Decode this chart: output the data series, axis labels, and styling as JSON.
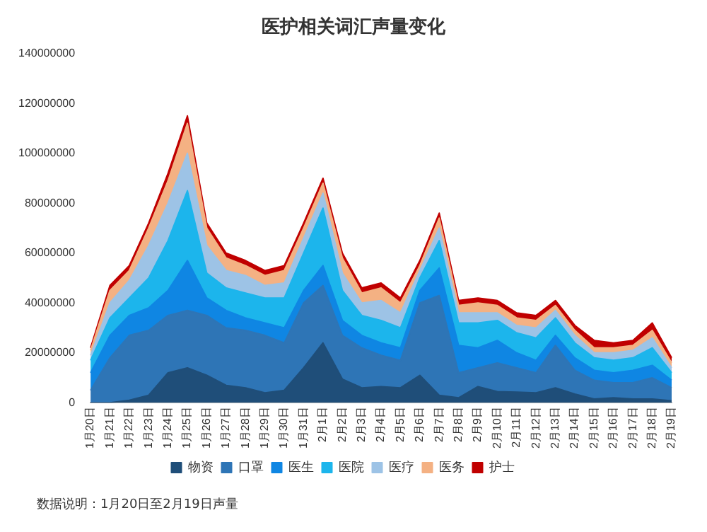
{
  "chart_data": {
    "type": "area",
    "title": "医护相关词汇声量变化",
    "stacked": true,
    "legend": "bottom",
    "grid": false,
    "categories": [
      "1月20日",
      "1月21日",
      "1月22日",
      "1月23日",
      "1月24日",
      "1月25日",
      "1月26日",
      "1月27日",
      "1月28日",
      "1月29日",
      "1月30日",
      "1月31日",
      "2月1日",
      "2月2日",
      "2月3日",
      "2月4日",
      "2月5日",
      "2月6日",
      "2月7日",
      "2月8日",
      "2月9日",
      "2月10日",
      "2月11日",
      "2月12日",
      "2月13日",
      "2月14日",
      "2月15日",
      "2月16日",
      "2月17日",
      "2月18日",
      "2月19日"
    ],
    "ylim": [
      0,
      140000000
    ],
    "yticks": [
      0,
      20000000,
      40000000,
      60000000,
      80000000,
      100000000,
      120000000,
      140000000
    ],
    "series": [
      {
        "name": "物资",
        "color": "#1f4e79",
        "values": [
          0,
          0,
          1000000,
          3000000,
          12000000,
          14000000,
          11000000,
          7000000,
          6000000,
          4000000,
          5000000,
          14000000,
          24000000,
          9500000,
          6000000,
          6500000,
          6000000,
          11000000,
          3000000,
          2000000,
          6500000,
          4500000,
          4300000,
          4000000,
          6000000,
          3500000,
          1500000,
          2000000,
          1500000,
          1500000,
          800000
        ]
      },
      {
        "name": "口罩",
        "color": "#2e75b6",
        "values": [
          5000000,
          18000000,
          26000000,
          26000000,
          23000000,
          23000000,
          24000000,
          23000000,
          23000000,
          23000000,
          19000000,
          26000000,
          23000000,
          17500000,
          16000000,
          12500000,
          11000000,
          29000000,
          40000000,
          10000000,
          7500000,
          11500000,
          9700000,
          8000000,
          17000000,
          9500000,
          7500000,
          6000000,
          6500000,
          8500000,
          5200000
        ]
      },
      {
        "name": "医生",
        "color": "#0f86e3",
        "values": [
          7000000,
          9000000,
          8000000,
          9000000,
          10000000,
          20000000,
          7000000,
          7000000,
          5000000,
          5000000,
          6000000,
          5000000,
          8000000,
          6000000,
          5000000,
          5000000,
          5000000,
          5000000,
          11000000,
          11000000,
          8000000,
          9000000,
          6000000,
          5000000,
          4000000,
          5000000,
          4000000,
          4000000,
          5000000,
          5000000,
          3000000
        ]
      },
      {
        "name": "医院",
        "color": "#1cb5ec",
        "values": [
          5000000,
          7000000,
          7000000,
          12000000,
          20000000,
          28000000,
          10000000,
          9000000,
          10000000,
          10000000,
          12000000,
          15000000,
          23000000,
          12000000,
          8000000,
          9000000,
          8000000,
          5000000,
          11000000,
          9000000,
          10000000,
          8000000,
          8000000,
          9000000,
          7000000,
          6000000,
          5000000,
          5000000,
          5000000,
          7000000,
          3000000
        ]
      },
      {
        "name": "医疗",
        "color": "#9dc3e6",
        "values": [
          2000000,
          6000000,
          7000000,
          13000000,
          15000000,
          15000000,
          11000000,
          7000000,
          7000000,
          5000000,
          6000000,
          6000000,
          6000000,
          7000000,
          5000000,
          8000000,
          6000000,
          3000000,
          5000000,
          4000000,
          4000000,
          3000000,
          3000000,
          4000000,
          3000000,
          3000000,
          2000000,
          3000000,
          3000000,
          4000000,
          2000000
        ]
      },
      {
        "name": "医务",
        "color": "#f4b183",
        "values": [
          2000000,
          5000000,
          4000000,
          7000000,
          9000000,
          12000000,
          7000000,
          5000000,
          4000000,
          4000000,
          5000000,
          4000000,
          4000000,
          6000000,
          4000000,
          5000000,
          4000000,
          2000000,
          4000000,
          3000000,
          4000000,
          3000000,
          3000000,
          3000000,
          2000000,
          2000000,
          2000000,
          2000000,
          2000000,
          3000000,
          2000000
        ]
      },
      {
        "name": "护士",
        "color": "#c00000",
        "values": [
          1000000,
          2000000,
          2000000,
          2000000,
          3000000,
          3000000,
          2000000,
          2000000,
          2000000,
          2000000,
          2000000,
          2000000,
          2000000,
          2000000,
          2000000,
          2000000,
          2000000,
          2000000,
          2000000,
          2000000,
          2000000,
          2000000,
          2000000,
          2000000,
          2000000,
          2000000,
          3000000,
          2000000,
          2000000,
          3000000,
          2000000
        ]
      }
    ],
    "annotations": [
      "数据说明：1月20日至2月19日声量"
    ]
  }
}
